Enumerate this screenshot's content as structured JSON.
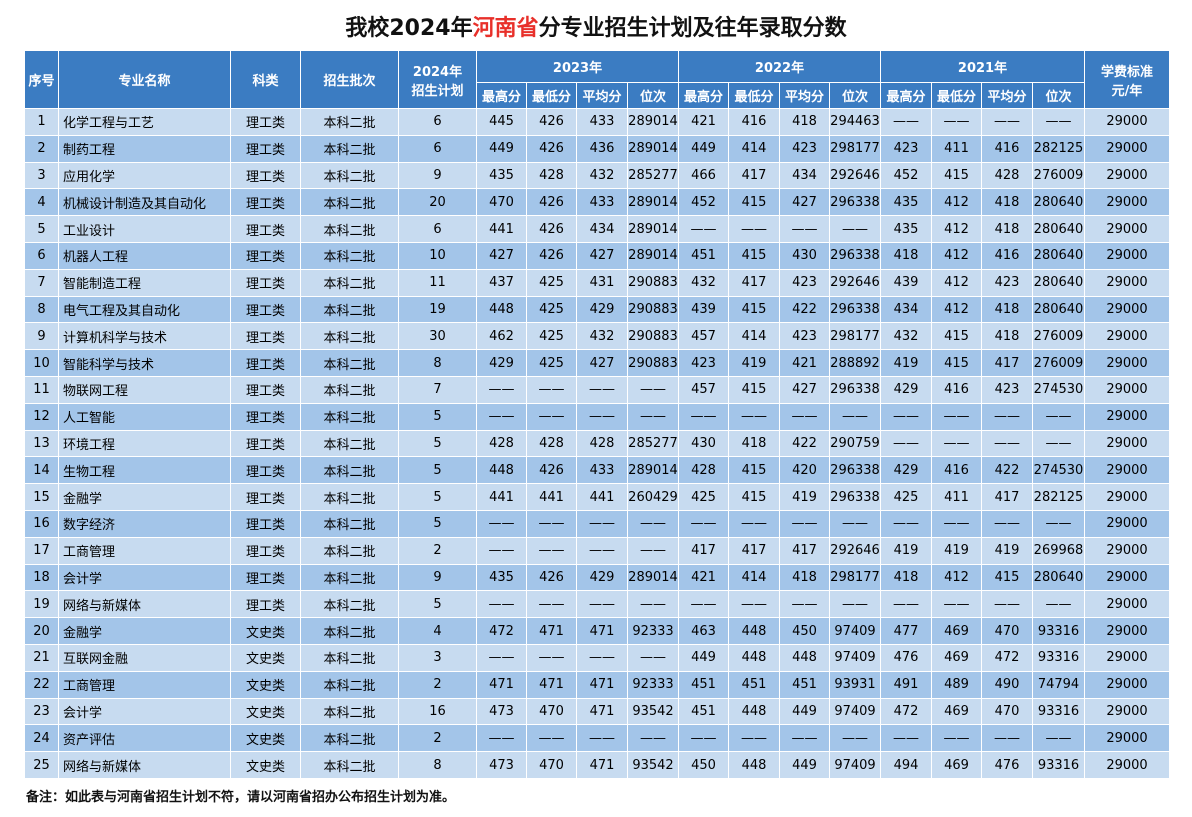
{
  "title": {
    "before": "我校2024年",
    "highlight": "河南省",
    "after": "分专业招生计划及往年录取分数"
  },
  "header": {
    "no": "序号",
    "major": "专业名称",
    "kind": "科类",
    "batch": "招生批次",
    "plan": [
      "2024年",
      "招生计划"
    ],
    "years": [
      "2023年",
      "2022年",
      "2021年"
    ],
    "sub": [
      "最高分",
      "最低分",
      "平均分",
      "位次"
    ],
    "fee": [
      "学费标准",
      "元/年"
    ]
  },
  "table": {
    "rows": [
      [
        1,
        "化学工程与工艺",
        "理工类",
        "本科二批",
        6,
        445,
        426,
        433,
        289014,
        421,
        416,
        418,
        294463,
        "——",
        "——",
        "——",
        "——",
        29000
      ],
      [
        2,
        "制药工程",
        "理工类",
        "本科二批",
        6,
        449,
        426,
        436,
        289014,
        449,
        414,
        423,
        298177,
        423,
        411,
        416,
        282125,
        29000
      ],
      [
        3,
        "应用化学",
        "理工类",
        "本科二批",
        9,
        435,
        428,
        432,
        285277,
        466,
        417,
        434,
        292646,
        452,
        415,
        428,
        276009,
        29000
      ],
      [
        4,
        "机械设计制造及其自动化",
        "理工类",
        "本科二批",
        20,
        470,
        426,
        433,
        289014,
        452,
        415,
        427,
        296338,
        435,
        412,
        418,
        280640,
        29000
      ],
      [
        5,
        "工业设计",
        "理工类",
        "本科二批",
        6,
        441,
        426,
        434,
        289014,
        "——",
        "——",
        "——",
        "——",
        435,
        412,
        418,
        280640,
        29000
      ],
      [
        6,
        "机器人工程",
        "理工类",
        "本科二批",
        10,
        427,
        426,
        427,
        289014,
        451,
        415,
        430,
        296338,
        418,
        412,
        416,
        280640,
        29000
      ],
      [
        7,
        "智能制造工程",
        "理工类",
        "本科二批",
        11,
        437,
        425,
        431,
        290883,
        432,
        417,
        423,
        292646,
        439,
        412,
        423,
        280640,
        29000
      ],
      [
        8,
        "电气工程及其自动化",
        "理工类",
        "本科二批",
        19,
        448,
        425,
        429,
        290883,
        439,
        415,
        422,
        296338,
        434,
        412,
        418,
        280640,
        29000
      ],
      [
        9,
        "计算机科学与技术",
        "理工类",
        "本科二批",
        30,
        462,
        425,
        432,
        290883,
        457,
        414,
        423,
        298177,
        432,
        415,
        418,
        276009,
        29000
      ],
      [
        10,
        "智能科学与技术",
        "理工类",
        "本科二批",
        8,
        429,
        425,
        427,
        290883,
        423,
        419,
        421,
        288892,
        419,
        415,
        417,
        276009,
        29000
      ],
      [
        11,
        "物联网工程",
        "理工类",
        "本科二批",
        7,
        "——",
        "——",
        "——",
        "——",
        457,
        415,
        427,
        296338,
        429,
        416,
        423,
        274530,
        29000
      ],
      [
        12,
        "人工智能",
        "理工类",
        "本科二批",
        5,
        "——",
        "——",
        "——",
        "——",
        "——",
        "——",
        "——",
        "——",
        "——",
        "——",
        "——",
        "——",
        29000
      ],
      [
        13,
        "环境工程",
        "理工类",
        "本科二批",
        5,
        428,
        428,
        428,
        285277,
        430,
        418,
        422,
        290759,
        "——",
        "——",
        "——",
        "——",
        29000
      ],
      [
        14,
        "生物工程",
        "理工类",
        "本科二批",
        5,
        448,
        426,
        433,
        289014,
        428,
        415,
        420,
        296338,
        429,
        416,
        422,
        274530,
        29000
      ],
      [
        15,
        "金融学",
        "理工类",
        "本科二批",
        5,
        441,
        441,
        441,
        260429,
        425,
        415,
        419,
        296338,
        425,
        411,
        417,
        282125,
        29000
      ],
      [
        16,
        "数字经济",
        "理工类",
        "本科二批",
        5,
        "——",
        "——",
        "——",
        "——",
        "——",
        "——",
        "——",
        "——",
        "——",
        "——",
        "——",
        "——",
        29000
      ],
      [
        17,
        "工商管理",
        "理工类",
        "本科二批",
        2,
        "——",
        "——",
        "——",
        "——",
        417,
        417,
        417,
        292646,
        419,
        419,
        419,
        269968,
        29000
      ],
      [
        18,
        "会计学",
        "理工类",
        "本科二批",
        9,
        435,
        426,
        429,
        289014,
        421,
        414,
        418,
        298177,
        418,
        412,
        415,
        280640,
        29000
      ],
      [
        19,
        "网络与新媒体",
        "理工类",
        "本科二批",
        5,
        "——",
        "——",
        "——",
        "——",
        "——",
        "——",
        "——",
        "——",
        "——",
        "——",
        "——",
        "——",
        29000
      ],
      [
        20,
        "金融学",
        "文史类",
        "本科二批",
        4,
        472,
        471,
        471,
        92333,
        463,
        448,
        450,
        97409,
        477,
        469,
        470,
        93316,
        29000
      ],
      [
        21,
        "互联网金融",
        "文史类",
        "本科二批",
        3,
        "——",
        "——",
        "——",
        "——",
        449,
        448,
        448,
        97409,
        476,
        469,
        472,
        93316,
        29000
      ],
      [
        22,
        "工商管理",
        "文史类",
        "本科二批",
        2,
        471,
        471,
        471,
        92333,
        451,
        451,
        451,
        93931,
        491,
        489,
        490,
        74794,
        29000
      ],
      [
        23,
        "会计学",
        "文史类",
        "本科二批",
        16,
        473,
        470,
        471,
        93542,
        451,
        448,
        449,
        97409,
        472,
        469,
        470,
        93316,
        29000
      ],
      [
        24,
        "资产评估",
        "文史类",
        "本科二批",
        2,
        "——",
        "——",
        "——",
        "——",
        "——",
        "——",
        "——",
        "——",
        "——",
        "——",
        "——",
        "——",
        29000
      ],
      [
        25,
        "网络与新媒体",
        "文史类",
        "本科二批",
        8,
        473,
        470,
        471,
        93542,
        450,
        448,
        449,
        97409,
        494,
        469,
        476,
        93316,
        29000
      ]
    ]
  },
  "note": "备注：如此表与河南省招生计划不符，请以河南省招办公布招生计划为准。"
}
